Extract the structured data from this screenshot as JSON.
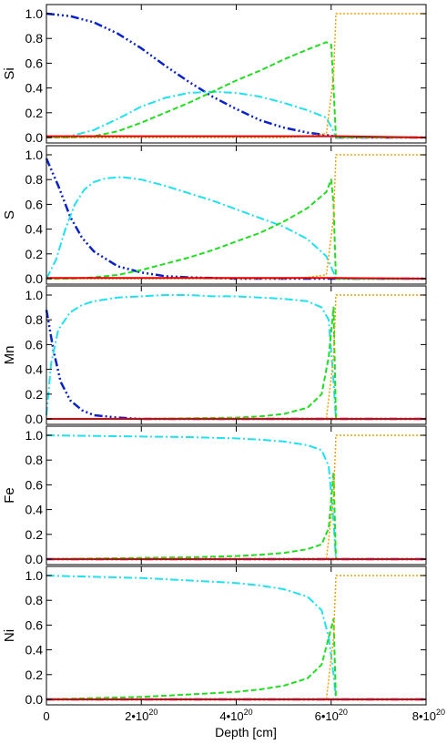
{
  "chart_data": {
    "type": "line",
    "xlabel": "Depth [cm]",
    "xlim": [
      0,
      8e+20
    ],
    "x_ticks": [
      {
        "value": 0,
        "label": "0"
      },
      {
        "value": 2e+20,
        "mant": "2",
        "exp": "20"
      },
      {
        "value": 4e+20,
        "mant": "4",
        "exp": "20"
      },
      {
        "value": 6e+20,
        "mant": "6",
        "exp": "20"
      },
      {
        "value": 8e+20,
        "mant": "8",
        "exp": "20"
      }
    ],
    "y_ticks": [
      "0.0",
      "0.2",
      "0.4",
      "0.6",
      "0.8",
      "1.0"
    ],
    "ylim": [
      0,
      1
    ],
    "series_styles": [
      {
        "key": "blue",
        "color": "#0a22c8",
        "style": "dash-dot-dot-dot",
        "width": 2.5
      },
      {
        "key": "cyan",
        "color": "#22e0ee",
        "style": "dash-dot",
        "width": 2
      },
      {
        "key": "green",
        "color": "#22dd22",
        "style": "dashed",
        "width": 2
      },
      {
        "key": "orange",
        "color": "#f0a000",
        "style": "dotted",
        "width": 1.5
      },
      {
        "key": "red",
        "color": "#e00000",
        "style": "solid",
        "width": 2
      }
    ],
    "panels": [
      {
        "ylabel": "Si",
        "series": [
          {
            "key": "blue",
            "x": [
              0,
              5e+19,
              1e+20,
              1.5e+20,
              2e+20,
              2.5e+20,
              3e+20,
              3.5e+20,
              4e+20,
              4.5e+20,
              5e+20,
              5.5e+20,
              5.9e+20,
              6.05e+20,
              6.1e+20,
              8e+20
            ],
            "y": [
              1.0,
              0.98,
              0.93,
              0.84,
              0.72,
              0.58,
              0.45,
              0.33,
              0.23,
              0.14,
              0.08,
              0.04,
              0.02,
              0.01,
              0,
              0
            ]
          },
          {
            "key": "cyan",
            "x": [
              0,
              5e+19,
              1e+20,
              1.5e+20,
              2e+20,
              2.5e+20,
              3e+20,
              3.5e+20,
              4e+20,
              4.5e+20,
              5e+20,
              5.5e+20,
              5.9e+20,
              6.05e+20,
              6.1e+20,
              8e+20
            ],
            "y": [
              0,
              0.01,
              0.06,
              0.15,
              0.25,
              0.32,
              0.36,
              0.37,
              0.36,
              0.33,
              0.28,
              0.22,
              0.16,
              0.05,
              0,
              0
            ]
          },
          {
            "key": "green",
            "x": [
              0,
              5e+19,
              1e+20,
              1.5e+20,
              2e+20,
              2.5e+20,
              3e+20,
              3.5e+20,
              4e+20,
              4.5e+20,
              5e+20,
              5.5e+20,
              5.9e+20,
              6e+20,
              6.05e+20,
              6.1e+20,
              8e+20
            ],
            "y": [
              0,
              0,
              0.01,
              0.05,
              0.12,
              0.2,
              0.28,
              0.37,
              0.46,
              0.54,
              0.63,
              0.71,
              0.77,
              0.75,
              0.4,
              0,
              0
            ]
          },
          {
            "key": "orange",
            "x": [
              0,
              5e+20,
              5.5e+20,
              5.9e+20,
              6.05e+20,
              6.1e+20,
              6.15e+20,
              8e+20
            ],
            "y": [
              0,
              0,
              0.01,
              0.03,
              0.5,
              1.0,
              1.0,
              1.0
            ]
          },
          {
            "key": "red",
            "x": [
              0,
              6.1e+20,
              8e+20
            ],
            "y": [
              0.01,
              0.01,
              0.0
            ]
          }
        ]
      },
      {
        "ylabel": "S",
        "series": [
          {
            "key": "blue",
            "x": [
              0,
              2.5e+19,
              5e+19,
              7.5e+19,
              1e+20,
              1.5e+20,
              2e+20,
              2.5e+20,
              3e+20,
              4e+20,
              5e+20,
              6.1e+20,
              8e+20
            ],
            "y": [
              0.97,
              0.75,
              0.5,
              0.33,
              0.22,
              0.1,
              0.05,
              0.02,
              0.01,
              0,
              0,
              0,
              0
            ]
          },
          {
            "key": "cyan",
            "x": [
              0,
              2e+19,
              4e+19,
              6e+19,
              8e+19,
              1e+20,
              1.25e+20,
              1.6e+20,
              2e+20,
              2.5e+20,
              3e+20,
              3.5e+20,
              4e+20,
              4.5e+20,
              5e+20,
              5.5e+20,
              5.9e+20,
              6.05e+20,
              6.1e+20,
              8e+20
            ],
            "y": [
              0,
              0.15,
              0.4,
              0.6,
              0.72,
              0.78,
              0.81,
              0.82,
              0.8,
              0.75,
              0.69,
              0.63,
              0.56,
              0.49,
              0.42,
              0.32,
              0.18,
              0.05,
              0,
              0
            ]
          },
          {
            "key": "green",
            "x": [
              0,
              5e+19,
              1e+20,
              1.5e+20,
              2e+20,
              2.5e+20,
              3e+20,
              3.5e+20,
              4e+20,
              4.5e+20,
              5e+20,
              5.5e+20,
              5.9e+20,
              6e+20,
              6.05e+20,
              6.1e+20,
              8e+20
            ],
            "y": [
              0,
              0,
              0.01,
              0.03,
              0.07,
              0.12,
              0.17,
              0.23,
              0.3,
              0.37,
              0.46,
              0.57,
              0.7,
              0.8,
              0.6,
              0,
              0
            ]
          },
          {
            "key": "orange",
            "x": [
              0,
              5e+20,
              5.5e+20,
              5.9e+20,
              6.05e+20,
              6.1e+20,
              6.15e+20,
              8e+20
            ],
            "y": [
              0,
              0,
              0.01,
              0.03,
              0.5,
              1.0,
              1.0,
              1.0
            ]
          },
          {
            "key": "red",
            "x": [
              0,
              6.1e+20,
              8e+20
            ],
            "y": [
              0.005,
              0.005,
              0.0
            ]
          }
        ]
      },
      {
        "ylabel": "Mn",
        "series": [
          {
            "key": "blue",
            "x": [
              0,
              1.5e+19,
              3e+19,
              5e+19,
              7.5e+19,
              1e+20,
              1.5e+20,
              2e+20,
              3e+20,
              6.1e+20,
              8e+20
            ],
            "y": [
              0.88,
              0.55,
              0.3,
              0.15,
              0.07,
              0.03,
              0.01,
              0,
              0,
              0,
              0
            ]
          },
          {
            "key": "cyan",
            "x": [
              0,
              1e+19,
              2.5e+19,
              5e+19,
              7.5e+19,
              1e+20,
              1.5e+20,
              2e+20,
              2.5e+20,
              3e+20,
              3.5e+20,
              4e+20,
              4.5e+20,
              5e+20,
              5.5e+20,
              5.8e+20,
              5.95e+20,
              6.05e+20,
              6.1e+20,
              8e+20
            ],
            "y": [
              0.03,
              0.45,
              0.72,
              0.86,
              0.92,
              0.95,
              0.98,
              0.99,
              1.0,
              1.0,
              0.99,
              0.99,
              0.98,
              0.97,
              0.95,
              0.9,
              0.8,
              0.3,
              0,
              0
            ]
          },
          {
            "key": "green",
            "x": [
              0,
              1e+20,
              2e+20,
              3e+20,
              4e+20,
              4.5e+20,
              5e+20,
              5.5e+20,
              5.8e+20,
              5.95e+20,
              6.05e+20,
              6.1e+20,
              8e+20
            ],
            "y": [
              0,
              0,
              0,
              0.005,
              0.01,
              0.02,
              0.04,
              0.09,
              0.2,
              0.5,
              0.9,
              0,
              0
            ]
          },
          {
            "key": "orange",
            "x": [
              0,
              5.9e+20,
              6.05e+20,
              6.1e+20,
              6.15e+20,
              8e+20
            ],
            "y": [
              0,
              0,
              0.5,
              1.0,
              1.0,
              1.0
            ]
          },
          {
            "key": "red",
            "x": [
              0,
              6.1e+20,
              8e+20
            ],
            "y": [
              0,
              0,
              0
            ]
          }
        ]
      },
      {
        "ylabel": "Fe",
        "series": [
          {
            "key": "blue",
            "x": [
              0,
              6.1e+20,
              8e+20
            ],
            "y": [
              0,
              0,
              0
            ]
          },
          {
            "key": "cyan",
            "x": [
              0,
              1e+20,
              2e+20,
              3e+20,
              4e+20,
              4.5e+20,
              5e+20,
              5.5e+20,
              5.8e+20,
              5.95e+20,
              6.05e+20,
              6.1e+20,
              8e+20
            ],
            "y": [
              1.0,
              0.995,
              0.99,
              0.985,
              0.975,
              0.965,
              0.95,
              0.92,
              0.88,
              0.75,
              0.3,
              0,
              0
            ]
          },
          {
            "key": "green",
            "x": [
              0,
              1e+20,
              2e+20,
              3e+20,
              4e+20,
              4.5e+20,
              5e+20,
              5.5e+20,
              5.8e+20,
              5.95e+20,
              6.05e+20,
              6.1e+20,
              8e+20
            ],
            "y": [
              0,
              0.005,
              0.01,
              0.015,
              0.025,
              0.035,
              0.05,
              0.08,
              0.12,
              0.25,
              0.7,
              0,
              0
            ]
          },
          {
            "key": "orange",
            "x": [
              0,
              5.9e+20,
              6.05e+20,
              6.1e+20,
              6.15e+20,
              8e+20
            ],
            "y": [
              0,
              0,
              0.5,
              1.0,
              1.0,
              1.0
            ]
          },
          {
            "key": "red",
            "x": [
              0,
              6.1e+20,
              8e+20
            ],
            "y": [
              0,
              0,
              0
            ]
          }
        ]
      },
      {
        "ylabel": "Ni",
        "series": [
          {
            "key": "blue",
            "x": [
              0,
              6.1e+20,
              8e+20
            ],
            "y": [
              0,
              0,
              0
            ]
          },
          {
            "key": "cyan",
            "x": [
              0,
              1e+20,
              2e+20,
              3e+20,
              4e+20,
              4.5e+20,
              5e+20,
              5.5e+20,
              5.8e+20,
              5.95e+20,
              6.05e+20,
              6.1e+20,
              8e+20
            ],
            "y": [
              1.0,
              0.99,
              0.98,
              0.96,
              0.94,
              0.92,
              0.89,
              0.83,
              0.72,
              0.5,
              0.2,
              0,
              0
            ]
          },
          {
            "key": "green",
            "x": [
              0,
              1e+20,
              2e+20,
              3e+20,
              4e+20,
              4.5e+20,
              5e+20,
              5.5e+20,
              5.8e+20,
              5.95e+20,
              6.05e+20,
              6.1e+20,
              8e+20
            ],
            "y": [
              0,
              0.01,
              0.02,
              0.04,
              0.06,
              0.08,
              0.11,
              0.17,
              0.28,
              0.5,
              0.65,
              0,
              0
            ]
          },
          {
            "key": "orange",
            "x": [
              0,
              5.9e+20,
              6.05e+20,
              6.1e+20,
              6.15e+20,
              8e+20
            ],
            "y": [
              0,
              0,
              0.5,
              1.0,
              1.0,
              1.0
            ]
          },
          {
            "key": "red",
            "x": [
              0,
              6.1e+20,
              8e+20
            ],
            "y": [
              0,
              0,
              0
            ]
          }
        ]
      }
    ]
  }
}
